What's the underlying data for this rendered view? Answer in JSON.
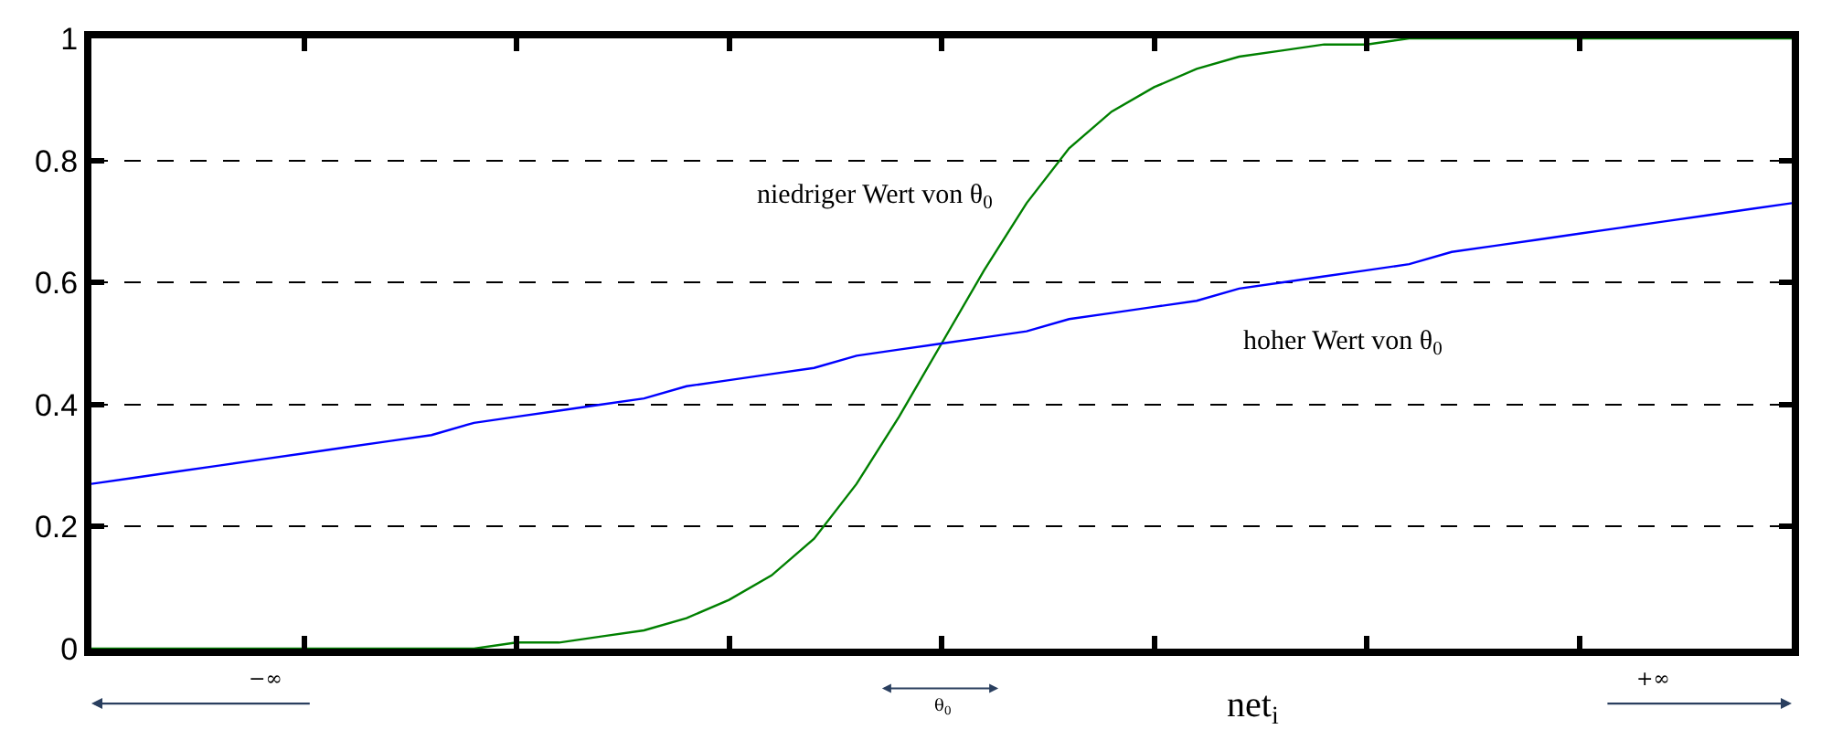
{
  "chart_data": {
    "type": "line",
    "xlabel": "net$_{i}$",
    "categories": [
      null,
      null,
      null,
      null,
      null,
      null,
      null,
      null,
      null,
      null,
      null,
      null,
      null,
      null,
      null,
      null,
      null,
      null,
      null,
      null,
      null,
      null,
      null,
      null,
      null,
      null,
      null,
      null,
      null,
      null,
      null,
      null,
      null,
      null,
      null,
      null,
      null,
      null,
      null,
      null,
      null
    ],
    "series": [
      {
        "name": "niedriger Wert von θ$_{0}$",
        "color": "#008000",
        "values": [
          0,
          0,
          0,
          0,
          0,
          0,
          0,
          0,
          0,
          0,
          0.01,
          0.01,
          0.02,
          0.03,
          0.05,
          0.08,
          0.12,
          0.18,
          0.27,
          0.38,
          0.5,
          0.62,
          0.73,
          0.82,
          0.88,
          0.92,
          0.95,
          0.97,
          0.98,
          0.99,
          0.99,
          1,
          1,
          1,
          1,
          1,
          1,
          1,
          1,
          1,
          1
        ]
      },
      {
        "name": "hoher Wert von θ$_{0}$",
        "color": "#0000ff",
        "values": [
          0.27,
          0.28,
          0.29,
          0.3,
          0.31,
          0.32,
          0.33,
          0.34,
          0.35,
          0.37,
          0.38,
          0.39,
          0.4,
          0.41,
          0.43,
          0.44,
          0.45,
          0.46,
          0.48,
          0.49,
          0.5,
          0.51,
          0.52,
          0.54,
          0.55,
          0.56,
          0.57,
          0.59,
          0.6,
          0.61,
          0.62,
          0.63,
          0.65,
          0.66,
          0.67,
          0.68,
          0.69,
          0.7,
          0.71,
          0.72,
          0.73
        ]
      }
    ],
    "ylim": [
      0,
      1
    ],
    "yticks": [
      0,
      0.2,
      0.4,
      0.6,
      0.8,
      1
    ],
    "grid": "y",
    "line_style": "solid",
    "marker": "none",
    "tick_labels": "y",
    "annotations": [
      "−∞",
      "θ$_{0}$",
      "+∞"
    ]
  }
}
